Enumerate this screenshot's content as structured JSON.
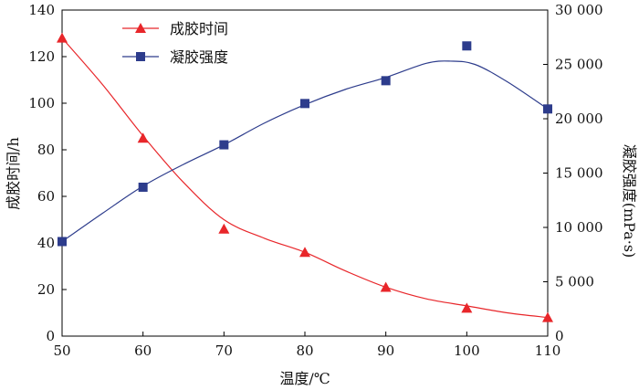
{
  "chart_data": {
    "type": "line",
    "xlabel": "温度/℃",
    "ylabel_left": "成胶时间/h",
    "ylabel_right": "凝胶强度(mPa·s)",
    "x_ticks": [
      50,
      60,
      70,
      80,
      90,
      100,
      110
    ],
    "y_left_ticks": [
      0,
      20,
      40,
      60,
      80,
      100,
      120,
      140
    ],
    "y_right_ticks": [
      "0",
      "5 000",
      "10 000",
      "15 000",
      "20 000",
      "25 000",
      "30 000"
    ],
    "x_range": [
      50,
      110
    ],
    "y_left_range": [
      0,
      140
    ],
    "y_right_range": [
      0,
      30000
    ],
    "legend_position": "top-left",
    "series": [
      {
        "name": "成胶时间",
        "axis": "left",
        "marker": "triangle",
        "color": "#e8262a",
        "x": [
          50,
          60,
          70,
          80,
          90,
          100,
          110
        ],
        "y": [
          128,
          85,
          46,
          36,
          21,
          12,
          8
        ]
      },
      {
        "name": "凝胶强度",
        "axis": "right",
        "marker": "square",
        "color": "#2d3c8c",
        "x": [
          50,
          60,
          70,
          80,
          90,
          100,
          110
        ],
        "y": [
          8700,
          13700,
          17600,
          21400,
          23500,
          26700,
          20900
        ]
      }
    ],
    "fit_curves": [
      {
        "axis": "left",
        "color": "#e8262a",
        "x": [
          50,
          55,
          60,
          65,
          70,
          75,
          80,
          85,
          90,
          95,
          100,
          105,
          110
        ],
        "y": [
          128,
          108,
          86,
          66,
          50,
          42,
          36,
          28,
          21,
          16,
          13,
          10,
          8
        ]
      },
      {
        "axis": "right",
        "color": "#2d3c8c",
        "x": [
          50,
          55,
          60,
          65,
          70,
          75,
          80,
          85,
          90,
          95,
          98,
          101,
          105,
          110
        ],
        "y": [
          8700,
          11300,
          13800,
          15800,
          17600,
          19600,
          21300,
          22700,
          23800,
          25100,
          25300,
          25000,
          23400,
          20900
        ]
      }
    ]
  }
}
